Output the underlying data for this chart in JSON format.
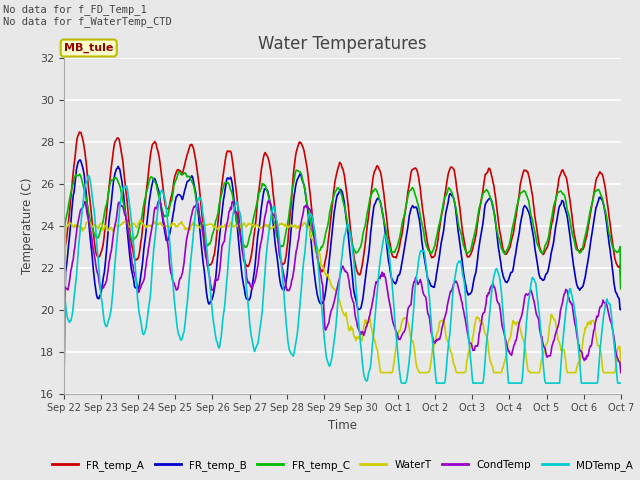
{
  "title": "Water Temperatures",
  "xlabel": "Time",
  "ylabel": "Temperature (C)",
  "ylim": [
    16,
    32
  ],
  "yticks": [
    16,
    18,
    20,
    22,
    24,
    26,
    28,
    30,
    32
  ],
  "annotation_lines": [
    "No data for f_FD_Temp_1",
    "No data for f_WaterTemp_CTD"
  ],
  "mb_tule_label": "MB_tule",
  "plot_bg_color": "#e8e8e8",
  "fig_bg_color": "#e8e8e8",
  "series": {
    "FR_temp_A": {
      "color": "#cc0000",
      "lw": 1.2
    },
    "FR_temp_B": {
      "color": "#0000cc",
      "lw": 1.2
    },
    "FR_temp_C": {
      "color": "#00bb00",
      "lw": 1.2
    },
    "WaterT": {
      "color": "#cccc00",
      "lw": 1.2
    },
    "CondTemp": {
      "color": "#9900cc",
      "lw": 1.2
    },
    "MDTemp_A": {
      "color": "#00cccc",
      "lw": 1.2
    }
  },
  "xtick_labels": [
    "Sep 22",
    "Sep 23",
    "Sep 24",
    "Sep 25",
    "Sep 26",
    "Sep 27",
    "Sep 28",
    "Sep 29",
    "Sep 30",
    "Oct 1",
    "Oct 2",
    "Oct 3",
    "Oct 4",
    "Oct 5",
    "Oct 6",
    "Oct 7"
  ],
  "num_days": 15,
  "ppd": 48
}
